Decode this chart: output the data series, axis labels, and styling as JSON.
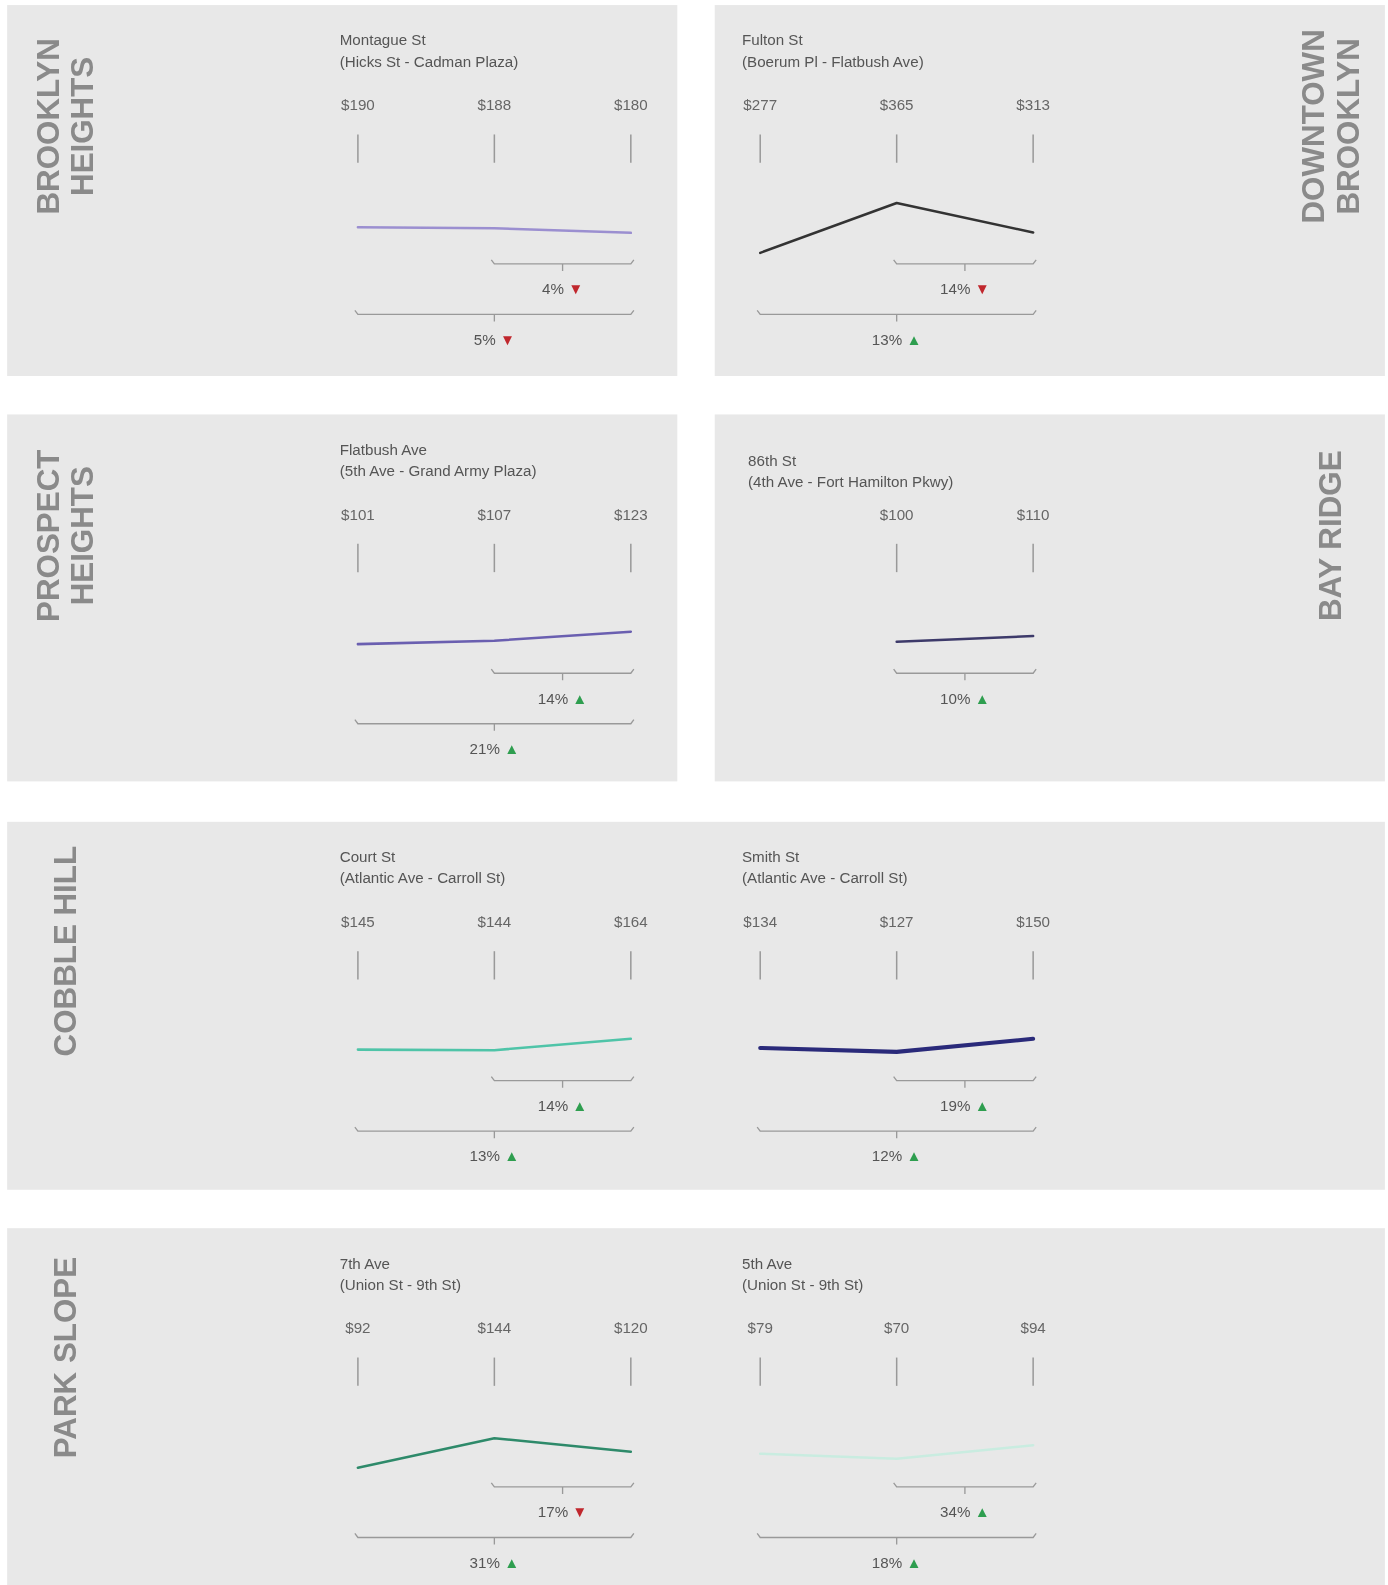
{
  "chart_data": [
    {
      "type": "line",
      "title": "Montague St",
      "subtitle": "(Hicks St - Cadman Plaza)",
      "ylabel": "BROOKLYN HEIGHTS",
      "categories": [
        null,
        null,
        null
      ],
      "series": [
        {
          "color": "#9b8fd0",
          "values": [
            190,
            188,
            180
          ],
          "value_labels": [
            "$190",
            "$188",
            "$180"
          ]
        }
      ],
      "annotations": [
        "4% ▼",
        "5% ▼"
      ]
    },
    {
      "type": "line",
      "title": "Fulton St",
      "subtitle": "(Boerum Pl - Flatbush Ave)",
      "y2label": "DOWNTOWN BROOKLYN",
      "categories": [
        null,
        null,
        null
      ],
      "series": [
        {
          "color": "#333333",
          "values": [
            277,
            365,
            313
          ],
          "value_labels": [
            "$277",
            "$365",
            "$313"
          ]
        }
      ],
      "annotations": [
        "14% ▼",
        "13% ▲"
      ]
    },
    {
      "type": "line",
      "title": "Flatbush Ave",
      "subtitle": "(5th Ave - Grand Army Plaza)",
      "ylabel": "PROSPECT HEIGHTS",
      "categories": [
        null,
        null,
        null
      ],
      "series": [
        {
          "color": "#6a5fb0",
          "values": [
            101,
            107,
            123
          ],
          "value_labels": [
            "$101",
            "$107",
            "$123"
          ]
        }
      ],
      "annotations": [
        "14% ▲",
        "21% ▲"
      ]
    },
    {
      "type": "line",
      "title": "86th St",
      "subtitle": "(4th Ave - Fort Hamilton Pkwy)",
      "y2label": "BAY RIDGE",
      "categories": [
        null,
        null
      ],
      "series": [
        {
          "color": "#3d3a6a",
          "values": [
            100,
            110
          ],
          "value_labels": [
            "$100",
            "$110"
          ]
        }
      ],
      "annotations": [
        "10% ▲"
      ]
    },
    {
      "type": "line",
      "title": "Court St",
      "subtitle": "(Atlantic Ave - Carroll St)",
      "ylabel": "COBBLE HILL",
      "categories": [
        null,
        null,
        null
      ],
      "series": [
        {
          "color": "#4fc4a8",
          "values": [
            145,
            144,
            164
          ],
          "value_labels": [
            "$145",
            "$144",
            "$164"
          ]
        }
      ],
      "annotations": [
        "14% ▲",
        "13% ▲"
      ]
    },
    {
      "type": "line",
      "title": "Smith St",
      "subtitle": "(Atlantic Ave - Carroll St)",
      "categories": [
        null,
        null,
        null
      ],
      "series": [
        {
          "color": "#2a2a7a",
          "values": [
            134,
            127,
            150
          ],
          "value_labels": [
            "$134",
            "$127",
            "$150"
          ]
        }
      ],
      "annotations": [
        "19% ▲",
        "12% ▲"
      ]
    },
    {
      "type": "line",
      "title": "7th Ave",
      "subtitle": "(Union St - 9th St)",
      "ylabel": "PARK SLOPE",
      "categories": [
        null,
        null,
        null
      ],
      "series": [
        {
          "color": "#2e8a6a",
          "values": [
            92,
            144,
            120
          ],
          "value_labels": [
            "$92",
            "$144",
            "$120"
          ]
        }
      ],
      "annotations": [
        "17% ▼",
        "31% ▲"
      ]
    },
    {
      "type": "line",
      "title": "5th Ave",
      "subtitle": "(Union St - 9th St)",
      "categories": [
        null,
        null,
        null
      ],
      "series": [
        {
          "color": "#c9ece0",
          "values": [
            79,
            70,
            94
          ],
          "value_labels": [
            "$79",
            "$70",
            "$94"
          ]
        }
      ],
      "annotations": [
        "34% ▲",
        "18% ▲"
      ]
    }
  ]
}
